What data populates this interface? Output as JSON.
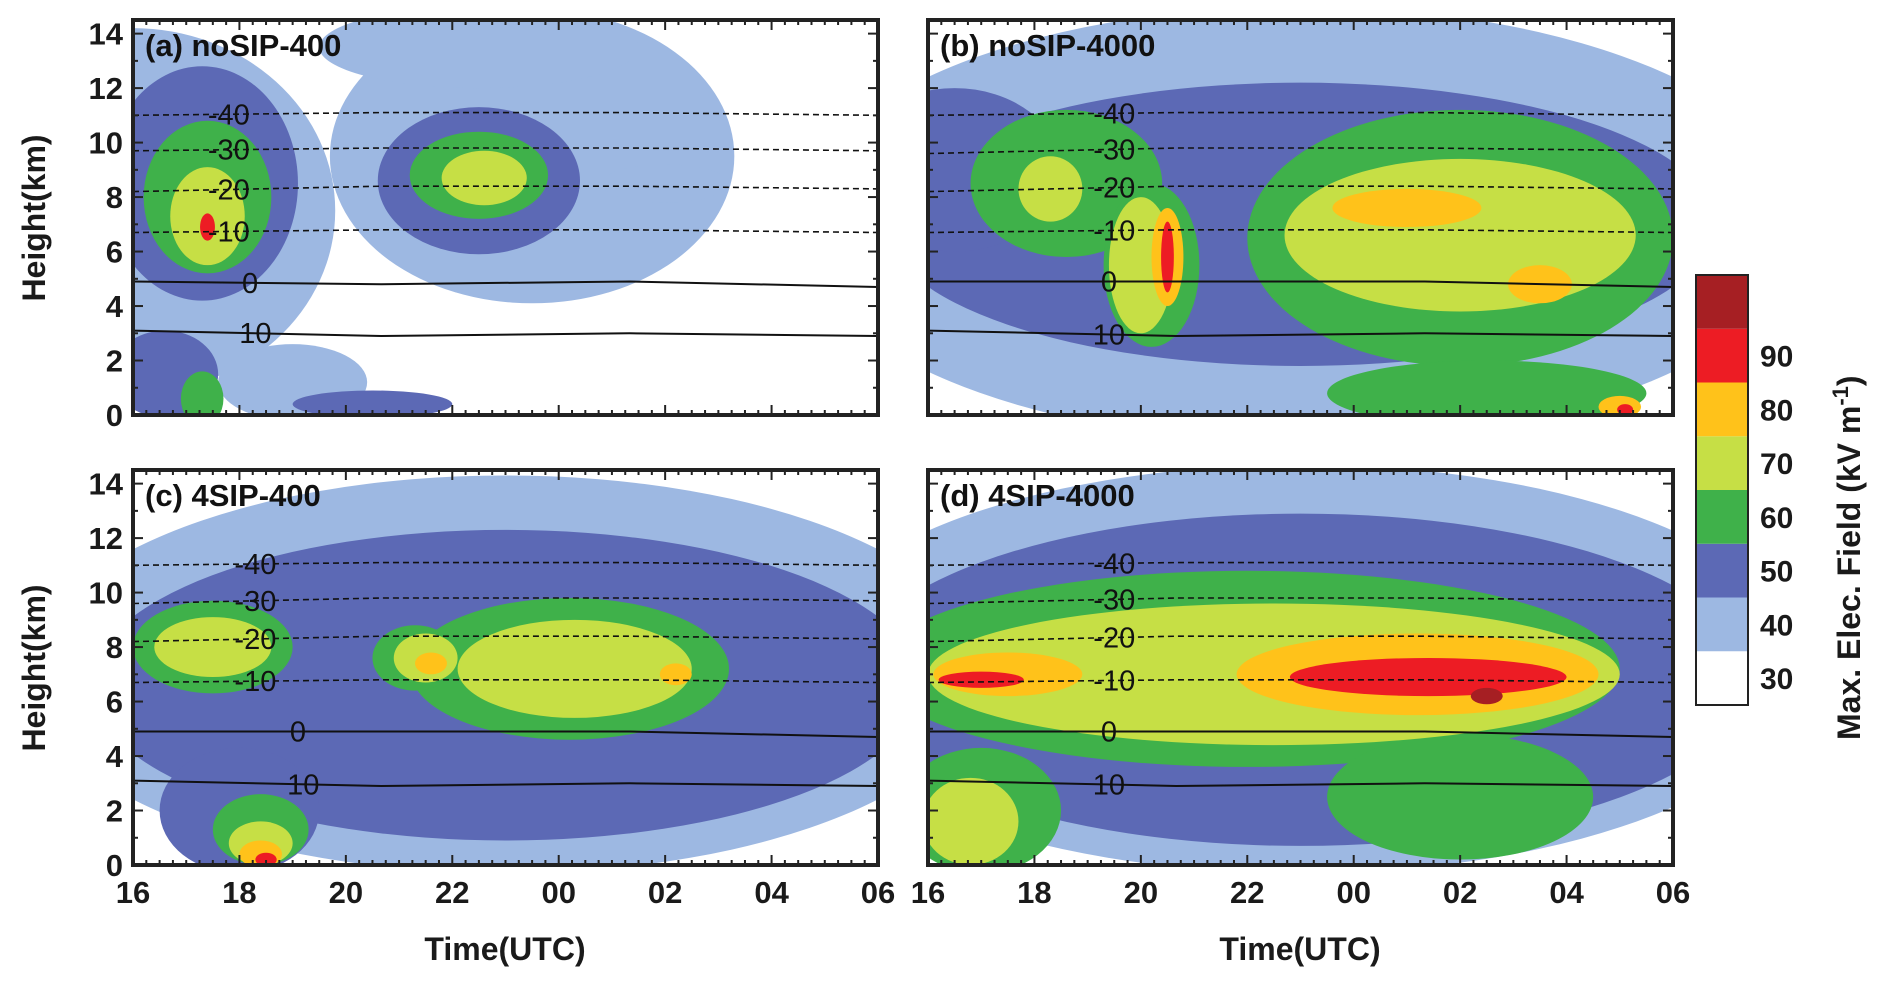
{
  "chart_data": [
    {
      "type": "heatmap",
      "panel_label": "(a) noSIP-400",
      "x_ticks": [
        "16",
        "18",
        "20",
        "22",
        "00",
        "02",
        "04",
        "06"
      ],
      "xlabel": "Time(UTC)",
      "ylabel": "Height(km)",
      "y_ticks": [
        0,
        2,
        4,
        6,
        8,
        10,
        12,
        14
      ],
      "xlim_hours": [
        16,
        30
      ],
      "ylim": [
        0,
        14.5
      ],
      "blobs": [
        {
          "level": 30,
          "x": 16.0,
          "y": 7.5,
          "rx": 3.8,
          "ry": 6.7
        },
        {
          "level": 30,
          "x": 23.5,
          "y": 9.5,
          "rx": 3.8,
          "ry": 5.4
        },
        {
          "level": 30,
          "x": 22.5,
          "y": 13.5,
          "rx": 3.0,
          "ry": 1.5
        },
        {
          "level": 30,
          "x": 19.0,
          "y": 1.2,
          "rx": 1.4,
          "ry": 1.4
        },
        {
          "level": 30,
          "x": 26.0,
          "y": 8.5,
          "rx": 1.2,
          "ry": 0.7
        },
        {
          "level": 40,
          "x": 17.3,
          "y": 8.5,
          "rx": 1.8,
          "ry": 4.3
        },
        {
          "level": 40,
          "x": 16.6,
          "y": 1.5,
          "rx": 1.0,
          "ry": 1.6
        },
        {
          "level": 40,
          "x": 22.5,
          "y": 8.6,
          "rx": 1.9,
          "ry": 2.7
        },
        {
          "level": 40,
          "x": 20.5,
          "y": 0.4,
          "rx": 1.5,
          "ry": 0.5
        },
        {
          "level": 50,
          "x": 17.4,
          "y": 8.0,
          "rx": 1.2,
          "ry": 2.8
        },
        {
          "level": 50,
          "x": 22.5,
          "y": 8.8,
          "rx": 1.3,
          "ry": 1.6
        },
        {
          "level": 50,
          "x": 17.3,
          "y": 0.6,
          "rx": 0.4,
          "ry": 1.0
        },
        {
          "level": 60,
          "x": 17.4,
          "y": 7.3,
          "rx": 0.7,
          "ry": 1.8
        },
        {
          "level": 60,
          "x": 22.6,
          "y": 8.7,
          "rx": 0.8,
          "ry": 1.0
        },
        {
          "level": 80,
          "x": 17.4,
          "y": 6.9,
          "rx": 0.14,
          "ry": 0.5
        }
      ],
      "isotherms": [
        {
          "label": "-40",
          "style": "dashed",
          "y": [
            11.0,
            11.1,
            11.1,
            11.0
          ]
        },
        {
          "label": "-30",
          "style": "dashed",
          "y": [
            9.7,
            9.8,
            9.8,
            9.7
          ]
        },
        {
          "label": "-20",
          "style": "dashed",
          "y": [
            8.2,
            8.4,
            8.4,
            8.3
          ]
        },
        {
          "label": "-10",
          "style": "dashed",
          "y": [
            6.7,
            6.8,
            6.8,
            6.7
          ]
        },
        {
          "label": "0",
          "style": "solid",
          "y": [
            4.9,
            4.8,
            4.9,
            4.7
          ]
        },
        {
          "label": "10",
          "style": "solid",
          "y": [
            3.1,
            2.9,
            3.0,
            2.9
          ]
        }
      ]
    },
    {
      "type": "heatmap",
      "panel_label": "(b) noSIP-4000",
      "x_ticks": [
        "16",
        "18",
        "20",
        "22",
        "00",
        "02",
        "04",
        "06"
      ],
      "xlabel": "Time(UTC)",
      "y_ticks": [
        0,
        2,
        4,
        6,
        8,
        10,
        12,
        14
      ],
      "xlim_hours": [
        16,
        30
      ],
      "ylim": [
        0,
        14.5
      ],
      "blobs": [
        {
          "level": 30,
          "x": 23.0,
          "y": 7.0,
          "rx": 9.5,
          "ry": 8.0
        },
        {
          "level": 40,
          "x": 23.0,
          "y": 7.0,
          "rx": 7.8,
          "ry": 5.2
        },
        {
          "level": 40,
          "x": 16.5,
          "y": 9.0,
          "rx": 2.0,
          "ry": 3.0
        },
        {
          "level": 50,
          "x": 18.6,
          "y": 8.5,
          "rx": 1.8,
          "ry": 2.7
        },
        {
          "level": 50,
          "x": 26.0,
          "y": 6.5,
          "rx": 4.0,
          "ry": 4.7
        },
        {
          "level": 50,
          "x": 26.5,
          "y": 0.8,
          "rx": 3.0,
          "ry": 1.2
        },
        {
          "level": 50,
          "x": 20.2,
          "y": 5.5,
          "rx": 0.9,
          "ry": 3.0
        },
        {
          "level": 60,
          "x": 26.0,
          "y": 6.6,
          "rx": 3.3,
          "ry": 2.8
        },
        {
          "level": 60,
          "x": 20.0,
          "y": 5.5,
          "rx": 0.6,
          "ry": 2.5
        },
        {
          "level": 60,
          "x": 18.3,
          "y": 8.3,
          "rx": 0.6,
          "ry": 1.2
        },
        {
          "level": 70,
          "x": 25.0,
          "y": 7.6,
          "rx": 1.4,
          "ry": 0.7
        },
        {
          "level": 70,
          "x": 27.5,
          "y": 4.8,
          "rx": 0.6,
          "ry": 0.7
        },
        {
          "level": 70,
          "x": 20.5,
          "y": 5.8,
          "rx": 0.3,
          "ry": 1.8
        },
        {
          "level": 70,
          "x": 29.0,
          "y": 0.3,
          "rx": 0.4,
          "ry": 0.4
        },
        {
          "level": 80,
          "x": 20.5,
          "y": 5.8,
          "rx": 0.12,
          "ry": 1.3
        },
        {
          "level": 80,
          "x": 29.1,
          "y": 0.2,
          "rx": 0.15,
          "ry": 0.2
        }
      ],
      "isotherms": [
        {
          "label": "-40",
          "style": "dashed",
          "y": [
            11.0,
            11.1,
            11.1,
            11.0
          ]
        },
        {
          "label": "-30",
          "style": "dashed",
          "y": [
            9.6,
            9.8,
            9.8,
            9.7
          ]
        },
        {
          "label": "-20",
          "style": "dashed",
          "y": [
            8.2,
            8.4,
            8.4,
            8.3
          ]
        },
        {
          "label": "-10",
          "style": "dashed",
          "y": [
            6.7,
            6.8,
            6.8,
            6.7
          ]
        },
        {
          "label": "0",
          "style": "solid",
          "y": [
            4.9,
            4.9,
            4.9,
            4.7
          ]
        },
        {
          "label": "10",
          "style": "solid",
          "y": [
            3.1,
            2.9,
            3.0,
            2.9
          ]
        }
      ]
    },
    {
      "type": "heatmap",
      "panel_label": "(c) 4SIP-400",
      "x_ticks": [
        "16",
        "18",
        "20",
        "22",
        "00",
        "02",
        "04",
        "06"
      ],
      "xlabel": "Time(UTC)",
      "ylabel": "Height(km)",
      "y_ticks": [
        0,
        2,
        4,
        6,
        8,
        10,
        12,
        14
      ],
      "xlim_hours": [
        16,
        30
      ],
      "ylim": [
        0,
        14.5
      ],
      "blobs": [
        {
          "level": 30,
          "x": 23.0,
          "y": 7.0,
          "rx": 9.0,
          "ry": 7.3
        },
        {
          "level": 40,
          "x": 23.0,
          "y": 6.6,
          "rx": 7.8,
          "ry": 5.7
        },
        {
          "level": 40,
          "x": 18.0,
          "y": 2.0,
          "rx": 1.5,
          "ry": 2.3
        },
        {
          "level": 50,
          "x": 24.2,
          "y": 7.2,
          "rx": 3.0,
          "ry": 2.6
        },
        {
          "level": 50,
          "x": 17.5,
          "y": 8.0,
          "rx": 1.5,
          "ry": 1.7
        },
        {
          "level": 50,
          "x": 18.4,
          "y": 1.3,
          "rx": 0.9,
          "ry": 1.3
        },
        {
          "level": 50,
          "x": 21.3,
          "y": 7.6,
          "rx": 0.8,
          "ry": 1.2
        },
        {
          "level": 60,
          "x": 24.3,
          "y": 7.2,
          "rx": 2.2,
          "ry": 1.8
        },
        {
          "level": 60,
          "x": 17.5,
          "y": 8.0,
          "rx": 1.1,
          "ry": 1.1
        },
        {
          "level": 60,
          "x": 21.5,
          "y": 7.6,
          "rx": 0.6,
          "ry": 0.9
        },
        {
          "level": 60,
          "x": 18.4,
          "y": 0.8,
          "rx": 0.6,
          "ry": 0.8
        },
        {
          "level": 70,
          "x": 18.4,
          "y": 0.4,
          "rx": 0.4,
          "ry": 0.5
        },
        {
          "level": 70,
          "x": 21.6,
          "y": 7.4,
          "rx": 0.3,
          "ry": 0.4
        },
        {
          "level": 70,
          "x": 26.2,
          "y": 7.0,
          "rx": 0.3,
          "ry": 0.4
        },
        {
          "level": 80,
          "x": 18.5,
          "y": 0.2,
          "rx": 0.2,
          "ry": 0.25
        }
      ],
      "isotherms": [
        {
          "label": "-40",
          "style": "dashed",
          "y": [
            11.0,
            11.1,
            11.1,
            11.0
          ]
        },
        {
          "label": "-30",
          "style": "dashed",
          "y": [
            9.6,
            9.8,
            9.8,
            9.7
          ]
        },
        {
          "label": "-20",
          "style": "dashed",
          "y": [
            8.2,
            8.4,
            8.4,
            8.3
          ]
        },
        {
          "label": "-10",
          "style": "dashed",
          "y": [
            6.7,
            6.8,
            6.8,
            6.7
          ]
        },
        {
          "label": "0",
          "style": "solid",
          "y": [
            4.9,
            4.9,
            4.9,
            4.7
          ]
        },
        {
          "label": "10",
          "style": "solid",
          "y": [
            3.1,
            2.9,
            3.0,
            2.9
          ]
        }
      ]
    },
    {
      "type": "heatmap",
      "panel_label": "(d) 4SIP-4000",
      "x_ticks": [
        "16",
        "18",
        "20",
        "22",
        "00",
        "02",
        "04",
        "06"
      ],
      "xlabel": "Time(UTC)",
      "y_ticks": [
        0,
        2,
        4,
        6,
        8,
        10,
        12,
        14
      ],
      "xlim_hours": [
        16,
        30
      ],
      "ylim": [
        0,
        14.5
      ],
      "blobs": [
        {
          "level": 30,
          "x": 23.0,
          "y": 7.2,
          "rx": 9.5,
          "ry": 7.5
        },
        {
          "level": 40,
          "x": 23.0,
          "y": 6.8,
          "rx": 8.5,
          "ry": 6.1
        },
        {
          "level": 50,
          "x": 22.0,
          "y": 7.2,
          "rx": 7.0,
          "ry": 3.6
        },
        {
          "level": 50,
          "x": 17.0,
          "y": 2.0,
          "rx": 1.5,
          "ry": 2.3
        },
        {
          "level": 50,
          "x": 26.0,
          "y": 2.5,
          "rx": 2.5,
          "ry": 2.3
        },
        {
          "level": 60,
          "x": 22.5,
          "y": 7.0,
          "rx": 6.5,
          "ry": 2.6
        },
        {
          "level": 60,
          "x": 16.8,
          "y": 1.6,
          "rx": 0.9,
          "ry": 1.6
        },
        {
          "level": 70,
          "x": 25.2,
          "y": 7.0,
          "rx": 3.4,
          "ry": 1.5
        },
        {
          "level": 70,
          "x": 17.5,
          "y": 7.0,
          "rx": 1.4,
          "ry": 0.8
        },
        {
          "level": 80,
          "x": 25.4,
          "y": 6.9,
          "rx": 2.6,
          "ry": 0.7
        },
        {
          "level": 80,
          "x": 17.0,
          "y": 6.8,
          "rx": 0.8,
          "ry": 0.3
        },
        {
          "level": 90,
          "x": 26.5,
          "y": 6.2,
          "rx": 0.3,
          "ry": 0.3
        }
      ],
      "isotherms": [
        {
          "label": "-40",
          "style": "dashed",
          "y": [
            11.0,
            11.1,
            11.1,
            11.0
          ]
        },
        {
          "label": "-30",
          "style": "dashed",
          "y": [
            9.6,
            9.8,
            9.8,
            9.7
          ]
        },
        {
          "label": "-20",
          "style": "dashed",
          "y": [
            8.2,
            8.4,
            8.4,
            8.3
          ]
        },
        {
          "label": "-10",
          "style": "dashed",
          "y": [
            6.7,
            6.8,
            6.8,
            6.7
          ]
        },
        {
          "label": "0",
          "style": "solid",
          "y": [
            4.9,
            4.9,
            4.9,
            4.7
          ]
        },
        {
          "label": "10",
          "style": "solid",
          "y": [
            3.1,
            2.9,
            3.0,
            2.9
          ]
        }
      ]
    }
  ],
  "colorbar": {
    "title": "Max. Elec. Field (kV m",
    "title_superscript": "-1",
    "title_close": ")",
    "levels": [
      30,
      40,
      50,
      60,
      70,
      80,
      90
    ],
    "tick_labels": [
      "30",
      "40",
      "50",
      "60",
      "70",
      "80",
      "90"
    ],
    "colors": [
      "#ffffff",
      "#9db8e2",
      "#5c69b5",
      "#3fb14a",
      "#c6df45",
      "#ffc21a",
      "#ed1c24",
      "#a61f23"
    ]
  },
  "colors": {
    "isotherm_line": "#111111",
    "frame": "#222222"
  }
}
